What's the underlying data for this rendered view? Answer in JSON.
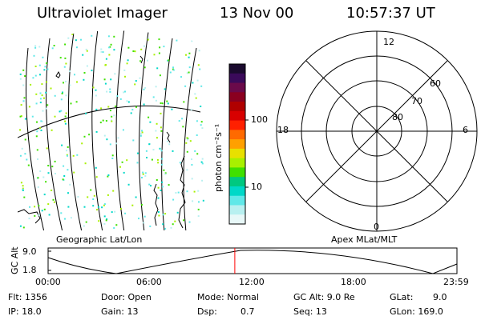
{
  "header": {
    "instrument": "Ultraviolet Imager",
    "date": "13 Nov 00",
    "time": "10:57:37 UT"
  },
  "map_panel": {
    "caption": "Geographic Lat/Lon"
  },
  "polar_panel": {
    "caption": "Apex MLat/MLT",
    "mlt_labels": {
      "top": "12",
      "left": "18",
      "right": "6",
      "bottom": "0"
    },
    "lat_labels": [
      "80",
      "70",
      "60"
    ]
  },
  "colorbar": {
    "label": "photon cm⁻²s⁻¹",
    "tick_labels": [
      "100",
      "10"
    ],
    "colors": [
      "#1a0a2e",
      "#3a0a5a",
      "#6a0a4a",
      "#8a0020",
      "#b00000",
      "#d80000",
      "#ff2000",
      "#ff6a00",
      "#ffa000",
      "#e8e000",
      "#a8f000",
      "#40e000",
      "#00c880",
      "#00d8c8",
      "#60e8e8",
      "#b8f0f0",
      "#e8f8f8"
    ]
  },
  "altitude_plot": {
    "ylabel": "GC Alt",
    "y_ticks": [
      "9.0",
      "1.8"
    ],
    "x_ticks": [
      "00:00",
      "06:00",
      "12:00",
      "18:00",
      "23:59"
    ],
    "current_time_hours": 10.96
  },
  "footer": {
    "row1": {
      "flt": "Flt: 1356",
      "door": "Door: Open",
      "mode": "Mode: Normal",
      "gc_alt": "GC Alt: 9.0 Re",
      "glat": "GLat:",
      "glat_val": "9.0"
    },
    "row2": {
      "ip": "IP: 18.0",
      "gain": "Gain: 13",
      "dsp": "Dsp:",
      "dsp_val": "0.7",
      "seq": "Seq: 13",
      "glon": "GLon: 169.0"
    }
  }
}
